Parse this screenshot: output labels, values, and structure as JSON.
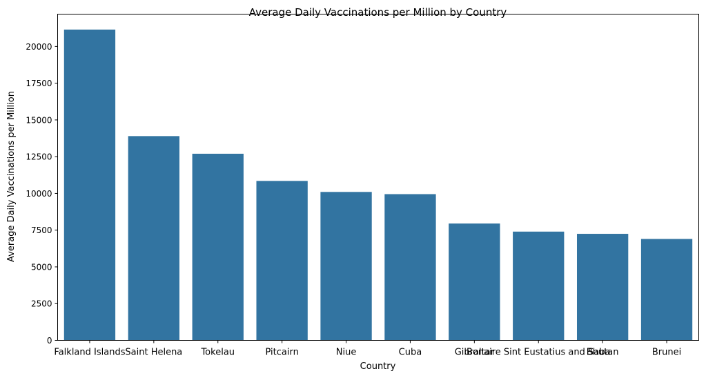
{
  "chart_data": {
    "type": "bar",
    "title": "Average Daily Vaccinations per Million by Country",
    "xlabel": "Country",
    "ylabel": "Average Daily Vaccinations per Million",
    "categories": [
      "Falkland Islands",
      "Saint Helena",
      "Tokelau",
      "Pitcairn",
      "Niue",
      "Cuba",
      "Gibraltar",
      "Bonaire Sint Eustatius and Saba",
      "Bhutan",
      "Brunei"
    ],
    "values": [
      21150,
      13900,
      12700,
      10850,
      10100,
      9950,
      7950,
      7400,
      7250,
      6900
    ],
    "ylim": [
      0,
      22200
    ],
    "yticks": [
      0,
      2500,
      5000,
      7500,
      10000,
      12500,
      15000,
      17500,
      20000
    ],
    "bar_color": "#3274a1",
    "grid": false,
    "legend": "none"
  }
}
